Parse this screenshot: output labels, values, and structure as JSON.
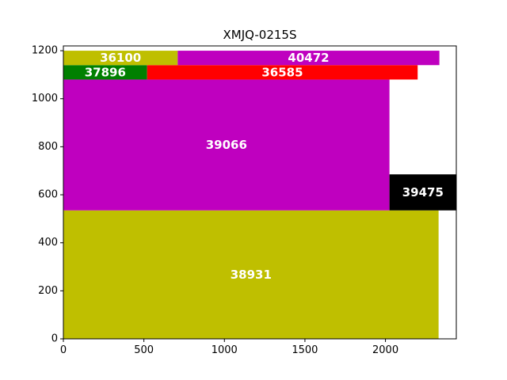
{
  "chart_data": {
    "type": "treemap",
    "title": "XMJQ-0215S",
    "xlim": [
      0,
      2440
    ],
    "ylim": [
      0,
      1220
    ],
    "xticks": [
      0,
      500,
      1000,
      1500,
      2000
    ],
    "yticks": [
      0,
      200,
      400,
      600,
      800,
      1000,
      1200
    ],
    "grid": false,
    "rects": [
      {
        "label": "38931",
        "x0": 0,
        "x1": 2330,
        "y0": 0,
        "y1": 535,
        "color": "#bfbf00"
      },
      {
        "label": "39066",
        "x0": 0,
        "x1": 2025,
        "y0": 535,
        "y1": 1080,
        "color": "#bf00bf"
      },
      {
        "label": "39475",
        "x0": 2025,
        "x1": 2440,
        "y0": 535,
        "y1": 685,
        "color": "#000000"
      },
      {
        "label": "37896",
        "x0": 0,
        "x1": 520,
        "y0": 1080,
        "y1": 1140,
        "color": "#008000"
      },
      {
        "label": "36585",
        "x0": 520,
        "x1": 2200,
        "y0": 1080,
        "y1": 1140,
        "color": "#ff0000"
      },
      {
        "label": "36100",
        "x0": 0,
        "x1": 710,
        "y0": 1140,
        "y1": 1200,
        "color": "#bfbf00"
      },
      {
        "label": "40472",
        "x0": 710,
        "x1": 2335,
        "y0": 1140,
        "y1": 1200,
        "color": "#bf00bf"
      }
    ]
  }
}
